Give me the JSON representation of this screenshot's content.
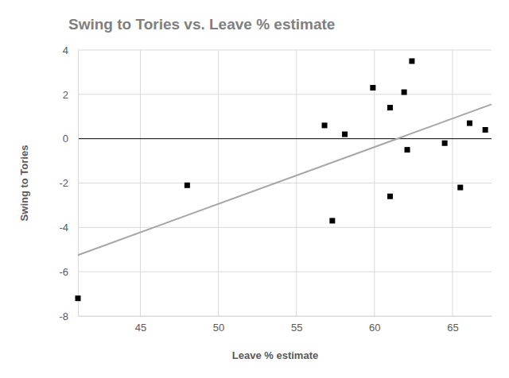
{
  "chart_data": {
    "type": "scatter",
    "title": "Swing to Tories vs. Leave % estimate",
    "x_label": "Leave % estimate",
    "y_label": "Swing to Tories",
    "x": [
      41,
      48,
      56.8,
      57.3,
      58.1,
      59.9,
      61.0,
      61.0,
      61.9,
      62.1,
      62.4,
      64.5,
      65.5,
      66.1,
      67.1
    ],
    "values": [
      -7.2,
      -2.1,
      0.6,
      -3.7,
      0.2,
      2.3,
      1.4,
      -2.6,
      2.1,
      -0.5,
      3.5,
      -0.2,
      -2.2,
      0.7,
      0.4
    ],
    "color": "#000000",
    "marker": "square",
    "trendline": {
      "x": [
        41,
        67.5
      ],
      "values": [
        -5.25,
        1.55
      ],
      "color": "#a6a6a6"
    },
    "xlim": [
      41,
      67.5
    ],
    "xticks": [
      45,
      50,
      55,
      60,
      65
    ],
    "ylim": [
      -8,
      4
    ],
    "yticks": [
      -8,
      -6,
      -4,
      -2,
      0,
      2,
      4
    ],
    "grid": true
  }
}
